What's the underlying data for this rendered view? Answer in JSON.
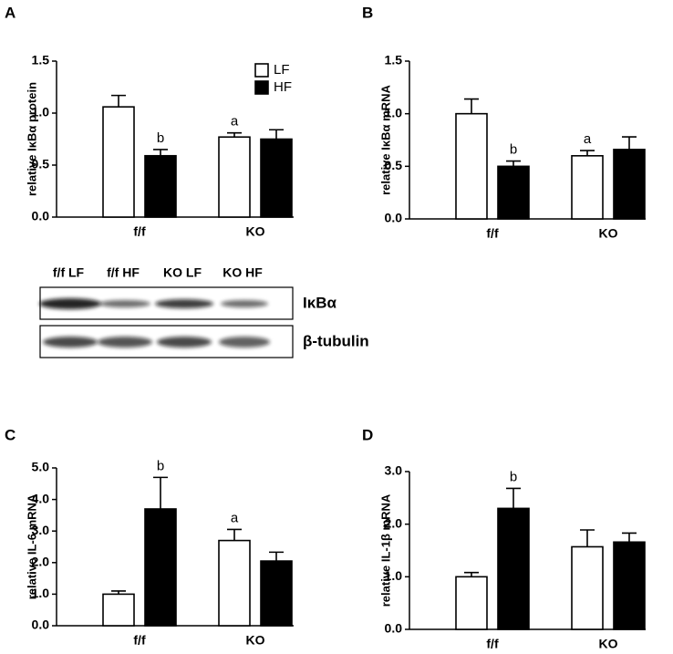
{
  "chart_data": [
    {
      "type": "bar",
      "panel": "A",
      "y_label": "relative IκBα protein",
      "categories": [
        "f/f",
        "KO"
      ],
      "legend": "upper right",
      "series": [
        {
          "name": "LF",
          "color": "#ffffff",
          "values": [
            1.06,
            0.77
          ],
          "errors": [
            0.11,
            0.04
          ],
          "annotations": [
            null,
            "a"
          ]
        },
        {
          "name": "HF",
          "color": "#000000",
          "values": [
            0.59,
            0.75
          ],
          "errors": [
            0.06,
            0.09
          ],
          "annotations": [
            "b",
            null
          ]
        }
      ],
      "ylim": [
        0,
        1.5
      ],
      "yticks": [
        {
          "value": 0,
          "label": "0.0"
        },
        0.5,
        {
          "value": 1,
          "label": "1.0"
        },
        1.5
      ]
    },
    {
      "type": "bar",
      "panel": "B",
      "y_label": "relative IκBα mRNA",
      "categories": [
        "f/f",
        "KO"
      ],
      "series": [
        {
          "color": "#ffffff",
          "values": [
            1.0,
            0.6
          ],
          "errors": [
            0.14,
            0.05
          ],
          "annotations": [
            null,
            "a"
          ]
        },
        {
          "color": "#000000",
          "values": [
            0.5,
            0.66
          ],
          "errors": [
            0.05,
            0.12
          ],
          "annotations": [
            "b",
            null
          ]
        }
      ],
      "ylim": [
        0,
        1.5
      ],
      "yticks": [
        {
          "value": 0,
          "label": "0.0"
        },
        0.5,
        {
          "value": 1,
          "label": "1.0"
        },
        1.5
      ]
    },
    {
      "type": "bar",
      "panel": "C",
      "y_label": "relative IL-6 mRNA",
      "categories": [
        "f/f",
        "KO"
      ],
      "series": [
        {
          "color": "#ffffff",
          "values": [
            1.0,
            2.7
          ],
          "errors": [
            0.1,
            0.35
          ],
          "annotations": [
            null,
            "a"
          ]
        },
        {
          "color": "#000000",
          "values": [
            3.7,
            2.05
          ],
          "errors": [
            1.0,
            0.28
          ],
          "annotations": [
            "b",
            null
          ]
        }
      ],
      "ylim": [
        0,
        5
      ],
      "yticks": [
        {
          "value": 0,
          "label": "0.0"
        },
        {
          "value": 1,
          "label": "1.0"
        },
        {
          "value": 2,
          "label": "2.0"
        },
        {
          "value": 3,
          "label": "3.0"
        },
        {
          "value": 4,
          "label": "4.0"
        },
        {
          "value": 5,
          "label": "5.0"
        }
      ]
    },
    {
      "type": "bar",
      "panel": "D",
      "y_label": "relative IL-1β mRNA",
      "categories": [
        "f/f",
        "KO"
      ],
      "series": [
        {
          "color": "#ffffff",
          "values": [
            1.0,
            1.57
          ],
          "errors": [
            0.08,
            0.32
          ],
          "annotations": [
            null,
            null
          ]
        },
        {
          "color": "#000000",
          "values": [
            2.3,
            1.66
          ],
          "errors": [
            0.38,
            0.17
          ],
          "annotations": [
            "b",
            null
          ]
        }
      ],
      "ylim": [
        0,
        3
      ],
      "yticks": [
        {
          "value": 0,
          "label": "0.0"
        },
        {
          "value": 1,
          "label": "1.0"
        },
        {
          "value": 2,
          "label": "2.0"
        },
        {
          "value": 3,
          "label": "3.0"
        }
      ]
    }
  ],
  "blot": {
    "lanes": [
      "f/f LF",
      "f/f HF",
      "KO LF",
      "KO HF"
    ],
    "rows": [
      "IκBα",
      "β-tubulin"
    ]
  }
}
